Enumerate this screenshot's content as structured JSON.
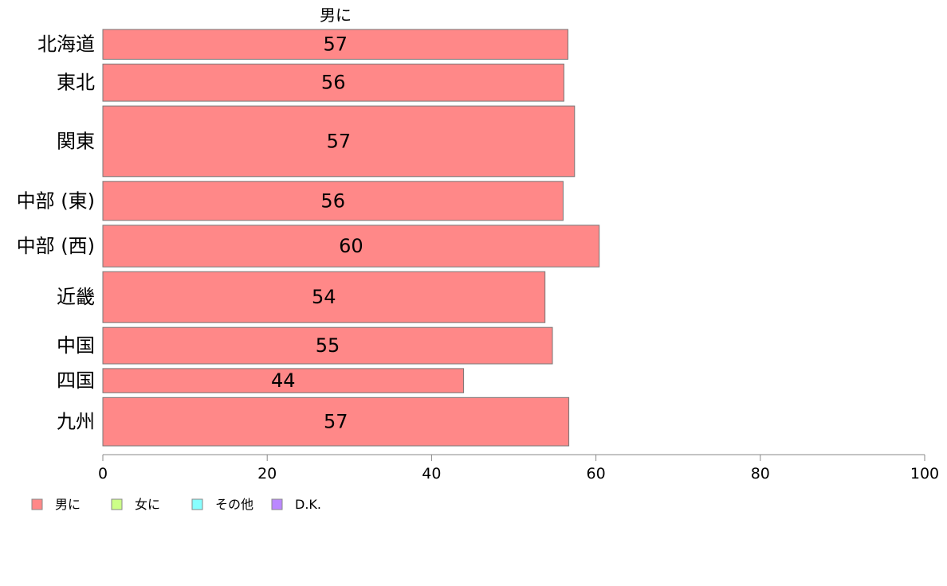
{
  "chart_data": {
    "type": "bar",
    "orientation": "horizontal",
    "variable_width": true,
    "series_title": "男に",
    "categories": [
      "北海道",
      "東北",
      "関東",
      "中部 (東)",
      "中部 (西)",
      "近畿",
      "中国",
      "四国",
      "九州"
    ],
    "series": [
      {
        "name": "男に",
        "values": [
          56.6,
          56.1,
          57.4,
          56.0,
          60.4,
          53.8,
          54.7,
          43.9,
          56.7
        ],
        "color": "#FF8888"
      }
    ],
    "data_labels": [
      "57",
      "56",
      "57",
      "56",
      "60",
      "54",
      "55",
      "44",
      "57"
    ],
    "relative_sample_size": [
      0.8,
      1.0,
      1.9,
      1.05,
      1.12,
      1.37,
      0.98,
      0.65,
      1.3
    ],
    "xlim": [
      0,
      100
    ],
    "x_ticks": [
      "0",
      "20",
      "40",
      "60",
      "80",
      "100"
    ],
    "xlabel": "",
    "ylabel": "",
    "grid": false,
    "legend_position": "bottom-left",
    "legend": [
      {
        "label": "男に",
        "color": "#FF8888"
      },
      {
        "label": "女に",
        "color": "#CCFF88"
      },
      {
        "label": "その他",
        "color": "#88FFFF"
      },
      {
        "label": "D.K.",
        "color": "#BB88FF"
      }
    ]
  }
}
